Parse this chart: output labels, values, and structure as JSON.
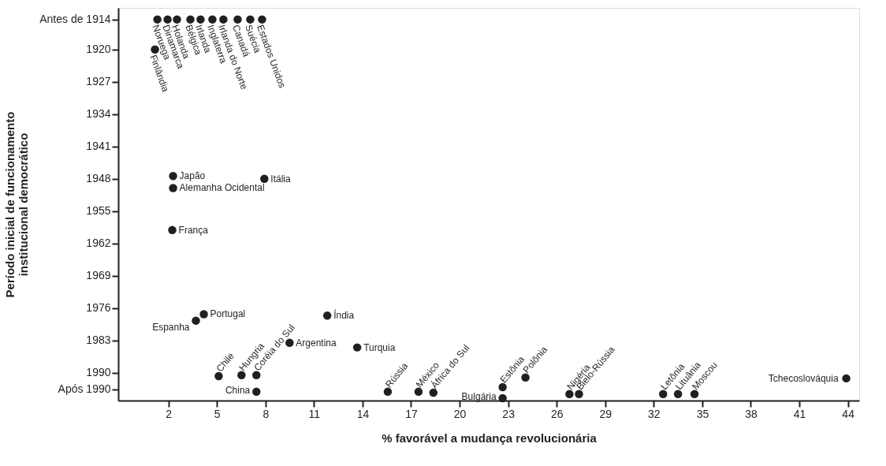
{
  "chart_data": {
    "type": "scatter",
    "xlabel": "% favorável a mudança revolucionária",
    "ylabel": "Período inicial de funcionamento\ninstitucional democrático",
    "x": [
      1.32,
      1.95,
      2.53,
      3.36,
      3.99,
      4.72,
      5.4,
      6.28,
      7.06,
      7.79,
      1.17,
      2.29,
      2.29,
      2.24,
      7.93,
      3.7,
      4.19,
      11.82,
      9.49,
      13.67,
      5.11,
      6.52,
      7.44,
      7.44,
      15.56,
      17.46,
      18.38,
      22.66,
      22.66,
      24.07,
      26.79,
      27.38,
      32.58,
      33.5,
      34.52,
      43.9
    ],
    "values": [
      1913.5,
      1913.5,
      1913.5,
      1913.5,
      1913.5,
      1913.5,
      1913.5,
      1913.5,
      1913.5,
      1913.5,
      1920,
      1947.4,
      1950,
      1959.1,
      1948,
      1978.7,
      1977.3,
      1977.6,
      1983.5,
      1984.5,
      1990.7,
      1990.5,
      1990.5,
      1994.1,
      1994.1,
      1994.1,
      1994.3,
      1993.1,
      1995.5,
      1991,
      1994.6,
      1994.6,
      1994.6,
      1994.6,
      1994.6,
      1991.2
    ],
    "color": "#231f20",
    "marker": "circle",
    "grid": false,
    "xlim": [
      -1.1,
      44.7
    ],
    "xticks": [
      2,
      5,
      8,
      11,
      14,
      17,
      20,
      23,
      26,
      29,
      32,
      35,
      38,
      41,
      44
    ],
    "ylim": [
      1996,
      1911
    ],
    "yticks": [
      {
        "value": 1913.5,
        "label": "Antes de 1914"
      },
      1920,
      1927,
      1934,
      1941,
      1948,
      1955,
      1962,
      1969,
      1976,
      1983,
      1990,
      {
        "value": 1993.6,
        "label": "Após 1990"
      }
    ],
    "annotations": [
      {
        "text": "Noruega",
        "x": 1.32,
        "y": 1913.5
      },
      {
        "text": "Dinamarca",
        "x": 1.95,
        "y": 1913.5
      },
      {
        "text": "Holanda",
        "x": 2.53,
        "y": 1913.5
      },
      {
        "text": "Bélgica",
        "x": 3.36,
        "y": 1913.5
      },
      {
        "text": "Irlanda",
        "x": 3.99,
        "y": 1913.5
      },
      {
        "text": "Inglaterra",
        "x": 4.72,
        "y": 1913.5
      },
      {
        "text": "Irlanda do Norte",
        "x": 5.4,
        "y": 1913.5
      },
      {
        "text": "Canadá",
        "x": 6.28,
        "y": 1913.5
      },
      {
        "text": "Suécia",
        "x": 7.06,
        "y": 1913.5
      },
      {
        "text": "Estados Unidos",
        "x": 7.79,
        "y": 1913.5
      },
      {
        "text": "Finlândia",
        "x": 1.17,
        "y": 1920
      },
      {
        "text": "Japão",
        "x": 2.29,
        "y": 1947.4
      },
      {
        "text": "Alemanha Ocidental",
        "x": 2.29,
        "y": 1950
      },
      {
        "text": "França",
        "x": 2.24,
        "y": 1959.1
      },
      {
        "text": "Itália",
        "x": 7.93,
        "y": 1948
      },
      {
        "text": "Espanha",
        "x": 3.7,
        "y": 1978.7
      },
      {
        "text": "Portugal",
        "x": 4.19,
        "y": 1977.3
      },
      {
        "text": "Índia",
        "x": 11.82,
        "y": 1977.6
      },
      {
        "text": "Argentina",
        "x": 9.49,
        "y": 1983.5
      },
      {
        "text": "Turquia",
        "x": 13.67,
        "y": 1984.5
      },
      {
        "text": "Chile",
        "x": 5.11,
        "y": 1990.7
      },
      {
        "text": "Hungria",
        "x": 6.52,
        "y": 1990.5
      },
      {
        "text": "Coréia do Sul",
        "x": 7.44,
        "y": 1990.5
      },
      {
        "text": "China",
        "x": 7.44,
        "y": 1994.1
      },
      {
        "text": "Rússia",
        "x": 15.56,
        "y": 1994.1
      },
      {
        "text": "México",
        "x": 17.46,
        "y": 1994.1
      },
      {
        "text": "África do Sul",
        "x": 18.38,
        "y": 1994.3
      },
      {
        "text": "Estônia",
        "x": 22.66,
        "y": 1993.1
      },
      {
        "text": "Bulgária",
        "x": 22.66,
        "y": 1995.5
      },
      {
        "text": "Polônia",
        "x": 24.07,
        "y": 1991
      },
      {
        "text": "Nigéria",
        "x": 26.79,
        "y": 1994.6
      },
      {
        "text": "Bielo-Rússia",
        "x": 27.38,
        "y": 1994.6
      },
      {
        "text": "Letônia",
        "x": 32.58,
        "y": 1994.6
      },
      {
        "text": "Lituânia",
        "x": 33.5,
        "y": 1994.6
      },
      {
        "text": "Moscou",
        "x": 34.52,
        "y": 1994.6
      },
      {
        "text": "Tchecoslováquia",
        "x": 43.9,
        "y": 1991.2
      }
    ]
  }
}
